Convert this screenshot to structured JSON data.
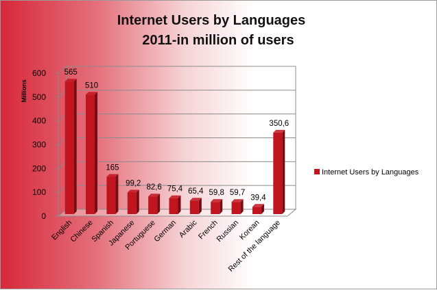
{
  "chart_data": {
    "type": "bar",
    "title_lines": [
      "Internet Users by Languages",
      "2011-in million of users"
    ],
    "ylabel": "Millions",
    "xlabel": "",
    "ylim": [
      0,
      600
    ],
    "yticks": [
      0,
      100,
      200,
      300,
      400,
      500,
      600
    ],
    "grid": true,
    "legend_position": "right",
    "categories": [
      "English",
      "Chinese",
      "Spanish",
      "Japanese",
      "Portuguese",
      "German",
      "Arabic",
      "French",
      "Russian",
      "Korean",
      "Rest of the language"
    ],
    "series": [
      {
        "name": "Internet Users by Languages",
        "color": "#c0141f",
        "values": [
          565,
          510,
          165,
          99.2,
          82.6,
          75.4,
          65.4,
          59.8,
          59.7,
          39.4,
          350.6
        ],
        "labels": [
          "565",
          "510",
          "165",
          "99,2",
          "82,6",
          "75,4",
          "65,4",
          "59,8",
          "59,7",
          "39,4",
          "350,6"
        ]
      }
    ]
  }
}
